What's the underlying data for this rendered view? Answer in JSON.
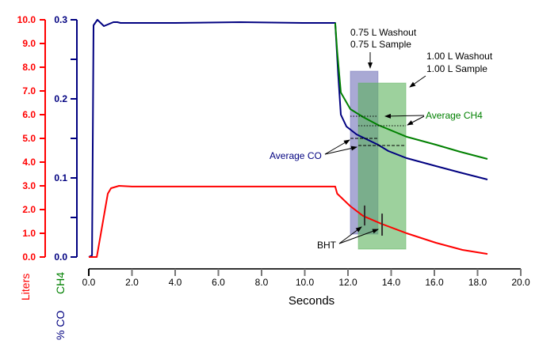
{
  "chart_data": {
    "type": "line",
    "xlabel": "Seconds",
    "xlim": [
      0,
      20
    ],
    "xticks": [
      "0.0",
      "2.0",
      "4.0",
      "6.0",
      "8.0",
      "10.0",
      "12.0",
      "14.0",
      "16.0",
      "18.0",
      "20.0"
    ],
    "axes": {
      "liters": {
        "label": "Liters",
        "ylim": [
          0,
          10
        ],
        "ticks": [
          "0.0",
          "1.0",
          "2.0",
          "3.0",
          "4.0",
          "5.0",
          "6.0",
          "7.0",
          "8.0",
          "9.0",
          "10.0"
        ],
        "color": "#ff0000"
      },
      "percent": {
        "label_ch4": "CH4",
        "label_co": "% CO",
        "ylim": [
          0,
          0.3
        ],
        "ticks": [
          "0.0",
          "0.1",
          "0.2",
          "0.3"
        ],
        "color": "#000080",
        "ch4_color": "#008000"
      }
    },
    "series": [
      {
        "name": "CO",
        "axis": "percent",
        "color": "#000080",
        "x": [
          0,
          0.15,
          0.22,
          0.4,
          0.7,
          1.14,
          1.32,
          1.47,
          4,
          7,
          10,
          11.41,
          11.55,
          11.67,
          11.93,
          12.4,
          13.39,
          13.87,
          14.72,
          16.07,
          17.17,
          18.46
        ],
        "y": [
          0,
          0.002,
          0.293,
          0.3,
          0.292,
          0.297,
          0.297,
          0.296,
          0.296,
          0.297,
          0.296,
          0.296,
          0.23,
          0.18,
          0.165,
          0.155,
          0.142,
          0.134,
          0.125,
          0.115,
          0.107,
          0.098
        ]
      },
      {
        "name": "CH4",
        "axis": "percent",
        "color": "#008000",
        "x": [
          11.41,
          11.5,
          11.67,
          12.11,
          12.7,
          13.39,
          14.72,
          16.07,
          17.2,
          18.46
        ],
        "y": [
          0.296,
          0.26,
          0.208,
          0.187,
          0.177,
          0.167,
          0.152,
          0.142,
          0.133,
          0.124
        ]
      },
      {
        "name": "Liters",
        "axis": "liters",
        "color": "#ff0000",
        "x": [
          0,
          0.37,
          0.88,
          1.03,
          1.4,
          2,
          11.41,
          11.5,
          12.1,
          12.7,
          13.55,
          14.72,
          16.07,
          17.3,
          18.46
        ],
        "y": [
          0,
          0,
          2.67,
          2.9,
          3.0,
          2.97,
          2.97,
          2.67,
          2.15,
          1.73,
          1.4,
          1.0,
          0.6,
          0.3,
          0.13
        ]
      }
    ],
    "regions": [
      {
        "name": "0.75 L sample window",
        "x": [
          12.11,
          13.39
        ],
        "y": [
          0.029,
          0.235
        ],
        "color": "#7070b8"
      },
      {
        "name": "1.00 L sample window",
        "x": [
          12.48,
          14.68
        ],
        "y": [
          0.01,
          0.22
        ],
        "color": "#5cb25c"
      }
    ],
    "average_lines": [
      {
        "series": "CH4",
        "x": [
          12.11,
          13.39
        ],
        "y": 0.178,
        "style": "dotted"
      },
      {
        "series": "CH4",
        "x": [
          12.48,
          14.68
        ],
        "y": 0.166,
        "style": "dotted"
      },
      {
        "series": "CO",
        "x": [
          12.11,
          13.39
        ],
        "y": 0.15,
        "style": "dashed"
      },
      {
        "series": "CO",
        "x": [
          12.48,
          14.68
        ],
        "y": 0.141,
        "style": "dashed"
      }
    ],
    "bht_markers": [
      {
        "x": 12.77,
        "liters": [
          1.33,
          2.17
        ]
      },
      {
        "x": 13.58,
        "liters": [
          0.9,
          1.83
        ]
      }
    ],
    "annotations": {
      "w075_line1": "0.75 L Washout",
      "w075_line2": "0.75 L Sample",
      "w100_line1": "1.00 L Washout",
      "w100_line2": "1.00 L Sample",
      "avg_ch4": "Average CH4",
      "avg_co": "Average CO",
      "bht": "BHT"
    }
  }
}
